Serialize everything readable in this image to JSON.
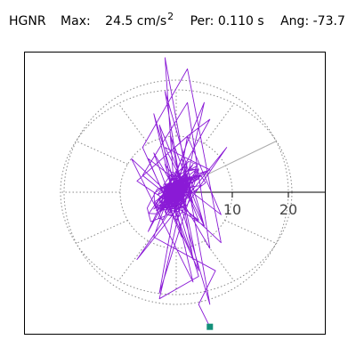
{
  "header": {
    "station": "HGNR",
    "max_label": "Max:",
    "max_value": "24.5 cm/s",
    "max_exponent": "2",
    "per_label": "Per:",
    "per_value": "0.110 s",
    "ang_label": "Ang:",
    "ang_value": "-73.7"
  },
  "colors": {
    "trace": "#8a1ad6",
    "end_marker": "#13907a",
    "grid": "#888888",
    "axis": "#000000"
  },
  "chart_data": {
    "type": "line",
    "title": "",
    "polar": true,
    "rings": [
      10,
      20
    ],
    "radial_max": 20,
    "radial_ticks": [
      "10",
      "20"
    ],
    "spokes_deg": [
      0,
      30,
      60,
      90,
      120,
      150,
      180,
      210,
      240,
      270,
      300,
      330
    ],
    "highlighted_ray_deg": 30,
    "max_amplitude": 24.5,
    "azimuth_deg": -73.7,
    "period_s": 0.11,
    "particle_motion": {
      "x": [
        0,
        3,
        -4,
        6,
        -2,
        5,
        -7,
        2,
        8,
        -5,
        1,
        -3,
        4,
        -6,
        2,
        6,
        -4,
        3,
        -2,
        5,
        -1,
        4,
        -6,
        2,
        8,
        -8,
        3,
        -4,
        6,
        -2,
        0,
        9,
        -7,
        4,
        -3,
        2,
        6,
        -5,
        1,
        3,
        -2,
        4,
        -3,
        5,
        2,
        -4,
        7,
        4,
        6
      ],
      "y": [
        0,
        5,
        -3,
        4,
        8,
        -6,
        2,
        10,
        -4,
        6,
        -8,
        12,
        -5,
        3,
        16,
        -10,
        7,
        -12,
        18,
        -6,
        10,
        -14,
        8,
        22,
        -9,
        6,
        -16,
        14,
        -20,
        24,
        -5,
        8,
        -12,
        4,
        -18,
        10,
        13,
        -7,
        6,
        -2,
        5,
        -15,
        -19,
        16,
        9,
        -8,
        -14,
        -20,
        -24
      ]
    },
    "end_point": {
      "x": 6,
      "y": -24
    }
  }
}
